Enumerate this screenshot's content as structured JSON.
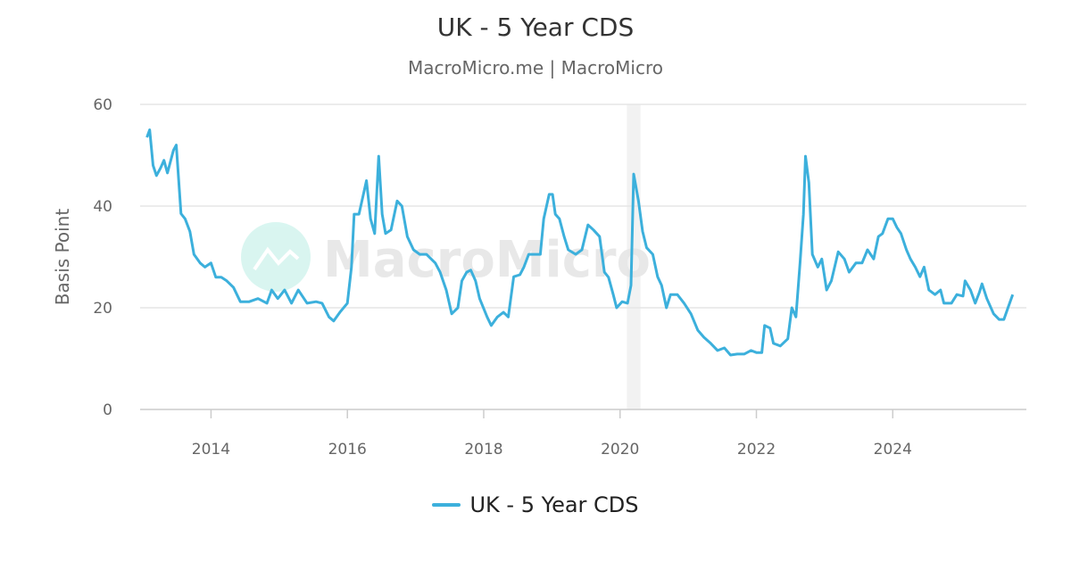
{
  "chart_data": {
    "type": "line",
    "title": "UK - 5 Year CDS",
    "subtitle": "MacroMicro.me | MacroMicro",
    "watermark": "MacroMicro",
    "ylabel": "Basis Point",
    "xlabel": "",
    "xlim": [
      2012.96,
      2025.96
    ],
    "ylim": [
      0,
      60
    ],
    "yticks": [
      0,
      20,
      40,
      60
    ],
    "xticks": [
      2014,
      2016,
      2018,
      2020,
      2022,
      2024
    ],
    "grid": true,
    "legend_position": "bottom",
    "shaded_ranges": [
      [
        2020.1,
        2020.3
      ]
    ],
    "series": [
      {
        "name": "UK - 5 Year CDS",
        "color": "#3cb0dc",
        "x": [
          2013.06,
          2013.1,
          2013.15,
          2013.2,
          2013.26,
          2013.31,
          2013.36,
          2013.45,
          2013.49,
          2013.56,
          2013.62,
          2013.69,
          2013.75,
          2013.84,
          2013.91,
          2014.0,
          2014.07,
          2014.15,
          2014.23,
          2014.33,
          2014.43,
          2014.56,
          2014.69,
          2014.82,
          2014.89,
          2014.98,
          2015.08,
          2015.18,
          2015.28,
          2015.41,
          2015.54,
          2015.63,
          2015.73,
          2015.8,
          2015.89,
          2016.0,
          2016.06,
          2016.1,
          2016.17,
          2016.23,
          2016.28,
          2016.34,
          2016.4,
          2016.46,
          2016.51,
          2016.56,
          2016.64,
          2016.73,
          2016.8,
          2016.88,
          2016.97,
          2017.06,
          2017.16,
          2017.29,
          2017.36,
          2017.45,
          2017.53,
          2017.62,
          2017.68,
          2017.75,
          2017.81,
          2017.88,
          2017.94,
          2018.05,
          2018.11,
          2018.2,
          2018.29,
          2018.36,
          2018.44,
          2018.53,
          2018.59,
          2018.66,
          2018.75,
          2018.83,
          2018.88,
          2018.96,
          2019.01,
          2019.05,
          2019.11,
          2019.18,
          2019.24,
          2019.35,
          2019.44,
          2019.53,
          2019.61,
          2019.7,
          2019.77,
          2019.83,
          2019.9,
          2019.95,
          2020.03,
          2020.11,
          2020.16,
          2020.2,
          2020.27,
          2020.33,
          2020.39,
          2020.48,
          2020.55,
          2020.61,
          2020.68,
          2020.74,
          2020.84,
          2020.94,
          2021.04,
          2021.14,
          2021.23,
          2021.33,
          2021.43,
          2021.53,
          2021.62,
          2021.72,
          2021.82,
          2021.92,
          2022.0,
          2022.08,
          2022.12,
          2022.2,
          2022.25,
          2022.35,
          2022.46,
          2022.52,
          2022.58,
          2022.64,
          2022.69,
          2022.72,
          2022.77,
          2022.82,
          2022.9,
          2022.96,
          2023.03,
          2023.1,
          2023.2,
          2023.29,
          2023.36,
          2023.46,
          2023.55,
          2023.63,
          2023.72,
          2023.79,
          2023.85,
          2023.93,
          2024.0,
          2024.06,
          2024.12,
          2024.2,
          2024.26,
          2024.33,
          2024.4,
          2024.46,
          2024.53,
          2024.62,
          2024.7,
          2024.75,
          2024.86,
          2024.94,
          2025.03,
          2025.06,
          2025.14,
          2025.21,
          2025.27,
          2025.31,
          2025.38,
          2025.48,
          2025.56,
          2025.63,
          2025.69,
          2025.76
        ],
        "y": [
          53.5,
          55,
          48,
          46,
          47.5,
          49,
          46.5,
          51,
          52,
          38.5,
          37.5,
          35,
          30.5,
          28.8,
          28,
          28.8,
          26,
          26,
          25.3,
          24,
          21.2,
          21.2,
          21.8,
          20.9,
          23.5,
          21.8,
          23.5,
          20.9,
          23.5,
          20.9,
          21.2,
          20.9,
          18.2,
          17.4,
          19.1,
          20.9,
          28,
          38.4,
          38.4,
          42,
          45,
          37.5,
          34.6,
          49.8,
          38.4,
          34.6,
          35.3,
          41,
          40,
          34,
          31.4,
          30.5,
          30.5,
          28.8,
          27,
          23.5,
          18.8,
          20,
          25.3,
          27,
          27.4,
          25.3,
          21.8,
          18.2,
          16.5,
          18.2,
          19.1,
          18.2,
          26.1,
          26.5,
          28,
          30.5,
          30.5,
          30.5,
          37.5,
          42.3,
          42.3,
          38.4,
          37.5,
          34,
          31.4,
          30.5,
          31.4,
          36.3,
          35.3,
          34,
          27,
          26,
          22.6,
          20,
          21.2,
          20.9,
          24.4,
          46.3,
          41,
          35,
          31.8,
          30.5,
          26.1,
          24.4,
          20,
          22.6,
          22.6,
          20.9,
          18.8,
          15.6,
          14.2,
          13,
          11.6,
          12.1,
          10.7,
          10.9,
          10.9,
          11.6,
          11.2,
          11.2,
          16.5,
          16,
          13,
          12.5,
          13.9,
          20,
          18.2,
          28.8,
          38.4,
          49.8,
          44.6,
          30.5,
          28,
          29.6,
          23.5,
          25.3,
          31,
          29.6,
          27,
          28.8,
          28.8,
          31.4,
          29.6,
          34,
          34.6,
          37.5,
          37.5,
          35.8,
          34.6,
          31.4,
          29.6,
          28,
          26.1,
          28,
          23.5,
          22.6,
          23.5,
          20.9,
          20.9,
          22.6,
          22.3,
          25.3,
          23.5,
          20.9,
          23,
          24.7,
          21.8,
          18.8,
          17.7,
          17.7,
          20,
          22.6
        ]
      }
    ]
  }
}
